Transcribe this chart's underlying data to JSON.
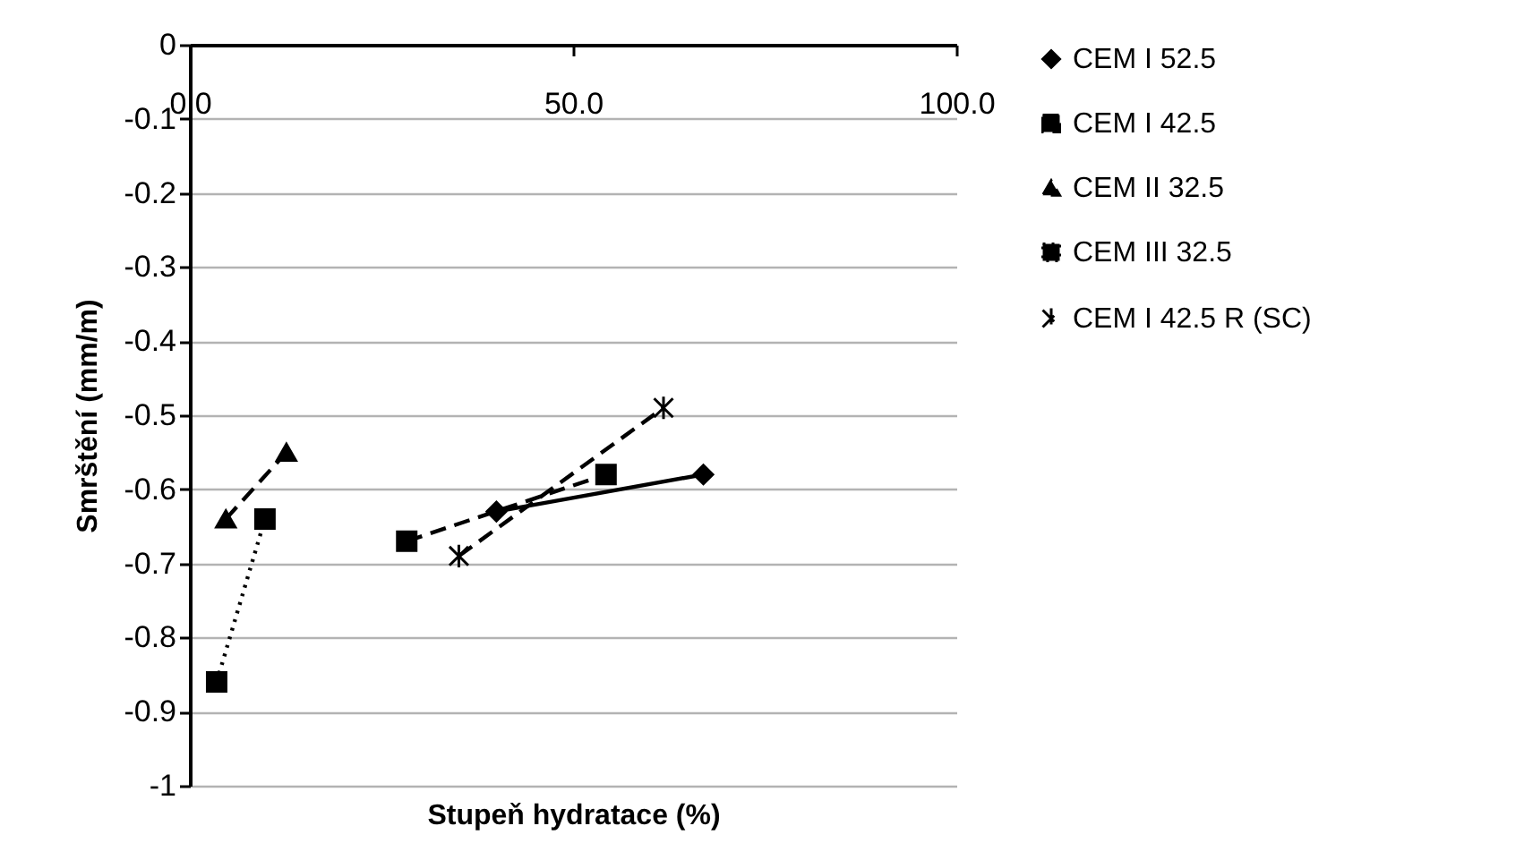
{
  "chart_data": {
    "type": "line",
    "xlabel": "Stupeň hydratace (%)",
    "ylabel": "Smrštění (mm/m)",
    "xlim": [
      0,
      100
    ],
    "xticks": [
      {
        "value": 0,
        "label": "0.0"
      },
      {
        "value": 50,
        "label": "50.0"
      },
      {
        "value": 100,
        "label": "100.0"
      }
    ],
    "ylim": [
      -1,
      0
    ],
    "yticks": [
      0,
      -0.1,
      -0.2,
      -0.3,
      -0.4,
      -0.5,
      -0.6,
      -0.7,
      -0.8,
      -0.9,
      -1
    ],
    "grid": "y",
    "legend": "right",
    "series": [
      {
        "name": "CEM I 52.5",
        "color": "#000000",
        "marker": "diamond",
        "line_style": "solid",
        "x": [
          40,
          67
        ],
        "values": [
          -0.63,
          -0.58
        ]
      },
      {
        "name": "CEM I 42.5",
        "color": "#000000",
        "marker": "square",
        "line_style": "dashed",
        "x": [
          28.3,
          54.3
        ],
        "values": [
          -0.67,
          -0.58
        ]
      },
      {
        "name": "CEM II 32.5",
        "color": "#000000",
        "marker": "triangle",
        "line_style": "dashed",
        "x": [
          4.7,
          12.6
        ],
        "values": [
          -0.64,
          -0.55
        ]
      },
      {
        "name": "CEM III 32.5",
        "color": "#000000",
        "marker": "square",
        "line_style": "dotted",
        "x": [
          3.5,
          9.8
        ],
        "values": [
          -0.86,
          -0.64
        ]
      },
      {
        "name": "CEM I 42.5 R (SC)",
        "color": "#000000",
        "marker": "cross",
        "line_style": "dashed",
        "x": [
          35.1,
          61.8
        ],
        "values": [
          -0.69,
          -0.49
        ]
      }
    ]
  }
}
